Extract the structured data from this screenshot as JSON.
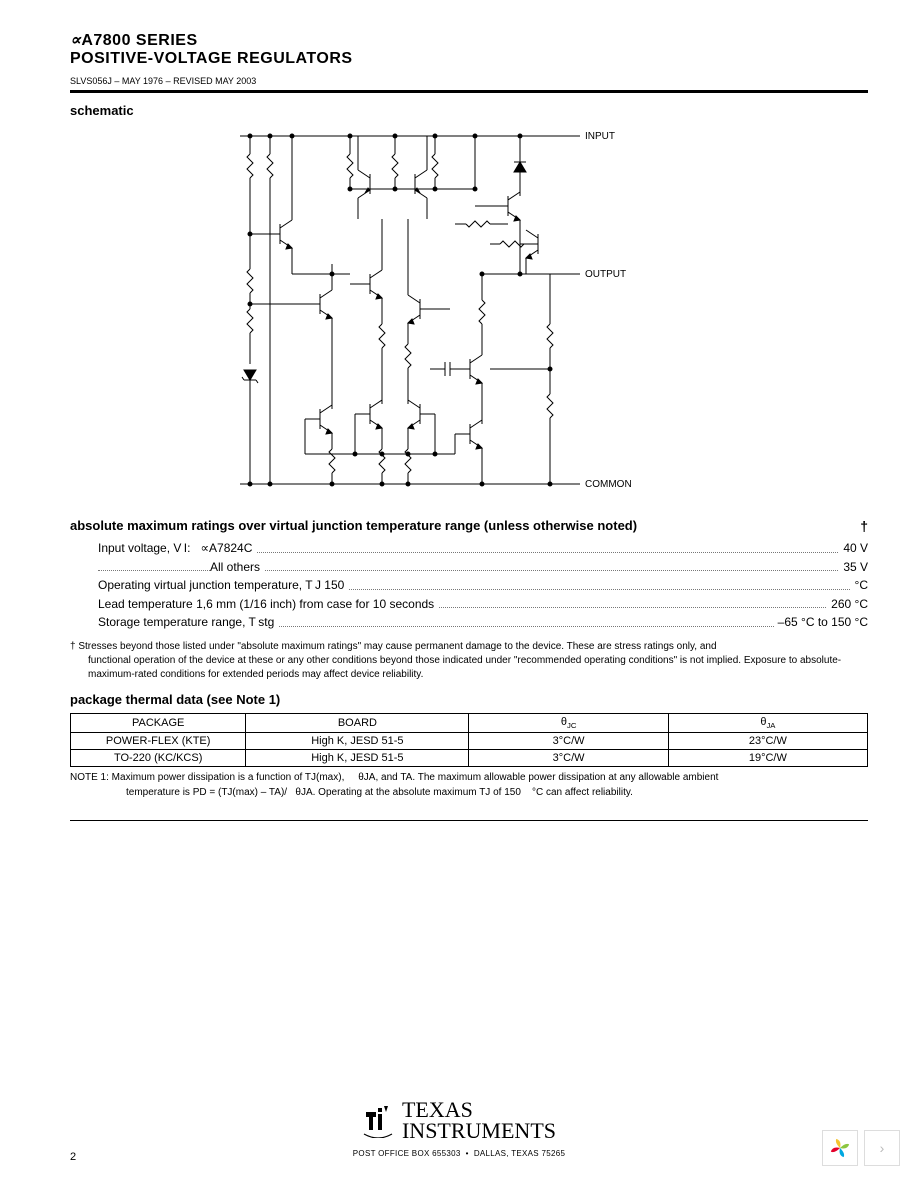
{
  "header": {
    "prefix_symbol": "∝",
    "title_line1": "A7800 SERIES",
    "title_line2": "POSITIVE-VOLTAGE REGULATORS",
    "doc_id": "SLVS056J – MAY 1976 – REVISED MAY 2003"
  },
  "sections": {
    "schematic_heading": "schematic",
    "ratings_heading": "absolute maximum ratings over virtual junction temperature range (unless otherwise noted)",
    "pkg_heading": "package thermal data (see Note 1)"
  },
  "schematic": {
    "labels": {
      "input": "INPUT",
      "output": "OUTPUT",
      "common": "COMMON"
    },
    "line_color": "#000000",
    "node_fill": "#000000",
    "bg": "#ffffff"
  },
  "ratings": [
    {
      "label": "Input voltage, V I:   ∝A7824C",
      "value": "40 V",
      "indent": false
    },
    {
      "label": "All others",
      "value": "35 V",
      "indent": true
    },
    {
      "label": "Operating virtual junction temperature, T J 150",
      "value": "°C",
      "indent": false
    },
    {
      "label": "Lead temperature 1,6 mm (1/16 inch) from case for 10 seconds",
      "value": "260 °C",
      "indent": false
    },
    {
      "label": "Storage temperature range, T stg",
      "value": "–65 °C to 150 °C",
      "indent": false
    }
  ],
  "dagger_note": {
    "line1": "† Stresses beyond those listed under \"absolute maximum ratings\" may cause permanent damage to the device. These are stress ratings only, and",
    "line2": "functional operation of the device at these or any other conditions beyond those indicated under \"recommended operating conditions\" is not implied. Exposure to absolute-maximum-rated conditions for extended periods may affect device reliability."
  },
  "pkg_table": {
    "columns": [
      "PACKAGE",
      "BOARD",
      "θJC",
      "θJA"
    ],
    "rows": [
      [
        "POWER-FLEX (KTE)",
        "High K, JESD 51-5",
        "3°C/W",
        "23°C/W"
      ],
      [
        "TO-220 (KC/KCS)",
        "High K, JESD 51-5",
        "3°C/W",
        "19°C/W"
      ]
    ],
    "col_widths_pct": [
      22,
      28,
      25,
      25
    ]
  },
  "note1": {
    "line1": "NOTE 1: Maximum power dissipation is a function of TJ(max),     θJA, and TA. The maximum allowable power dissipation at any allowable ambient",
    "line2": "temperature is PD = (TJ(max) – TA)/   θJA. Operating at the absolute maximum TJ of 150    °C can affect reliability."
  },
  "footer": {
    "brand_top": "TEXAS",
    "brand_bottom": "INSTRUMENTS",
    "address": "POST OFFICE BOX 655303  •  DALLAS, TEXAS 75265",
    "page_number": "2"
  },
  "corner_widget": {
    "petal_colors": [
      "#f4c430",
      "#8cc63f",
      "#00a8e1",
      "#e4002b"
    ],
    "chevron": "›"
  }
}
